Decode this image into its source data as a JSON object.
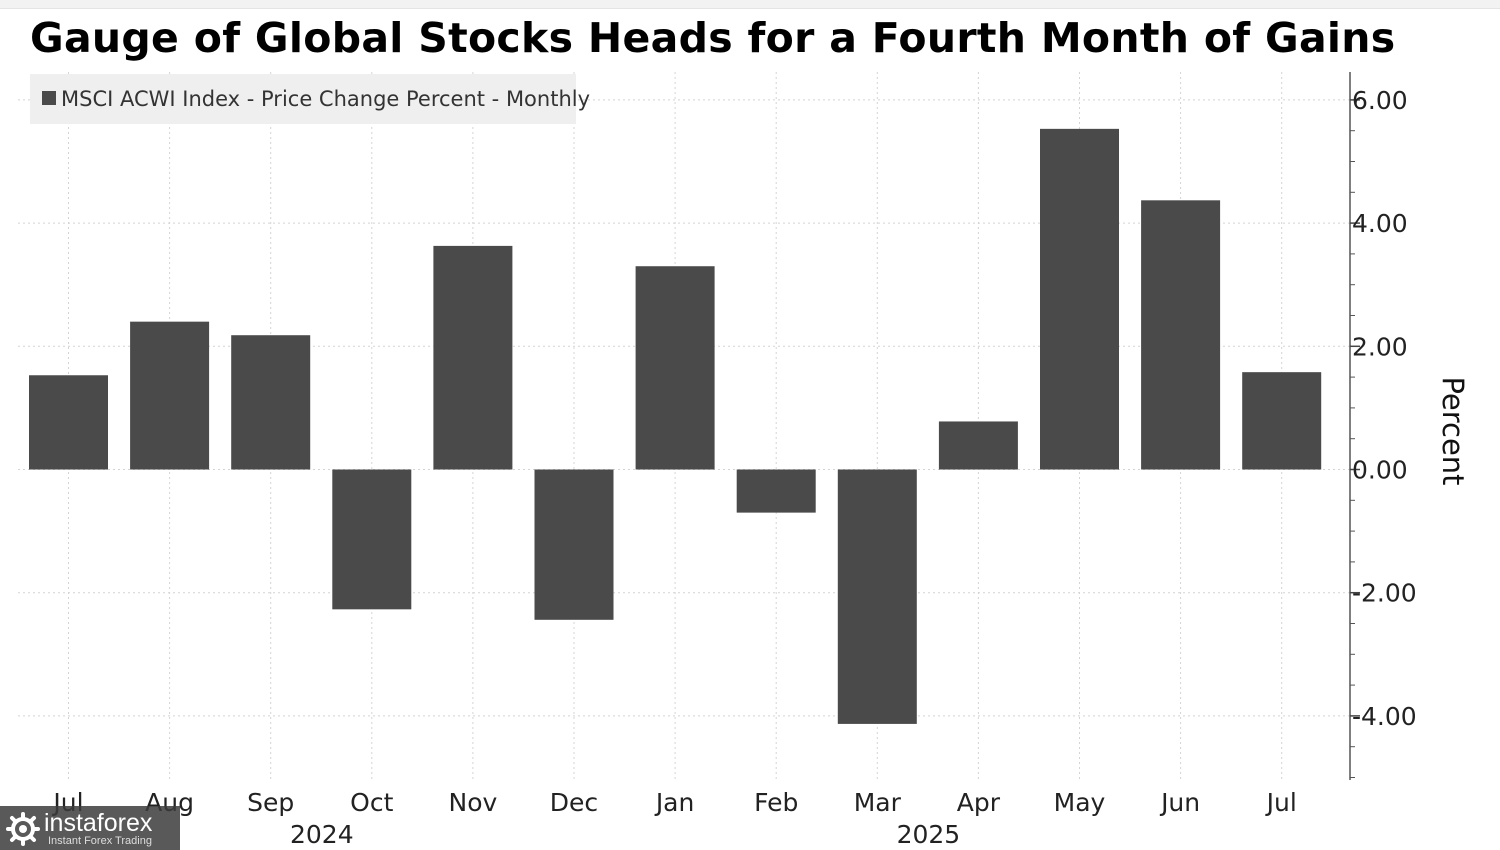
{
  "chart_data": {
    "type": "bar",
    "title": "Gauge of Global Stocks Heads for a Fourth Month of Gains",
    "ylabel": "Percent",
    "xlabel": "",
    "categories": [
      "Jul",
      "Aug",
      "Sep",
      "Oct",
      "Nov",
      "Dec",
      "Jan",
      "Feb",
      "Mar",
      "Apr",
      "May",
      "Jun",
      "Jul"
    ],
    "year_labels": [
      {
        "label": "2024",
        "category_index": 3
      },
      {
        "label": "2025",
        "category_index": 9
      }
    ],
    "series": [
      {
        "name": "MSCI ACWI Index - Price Change Percent - Monthly",
        "color": "#4a4a4a",
        "values": [
          1.53,
          2.4,
          2.18,
          -2.27,
          3.63,
          -2.44,
          3.3,
          -0.7,
          -4.13,
          0.78,
          5.53,
          4.37,
          1.58
        ]
      }
    ],
    "y_ticks": [
      "6.00",
      "4.00",
      "2.00",
      "0.00",
      "-2.00",
      "-4.00"
    ],
    "y_tick_values": [
      6,
      4,
      2,
      0,
      -2,
      -4
    ],
    "ylim": [
      -5.0,
      6.4
    ],
    "grid": true,
    "legend_position": "top-left",
    "y_axis_side": "right"
  },
  "watermark": {
    "text": "instaforex",
    "subtext": "Instant Forex Trading"
  }
}
